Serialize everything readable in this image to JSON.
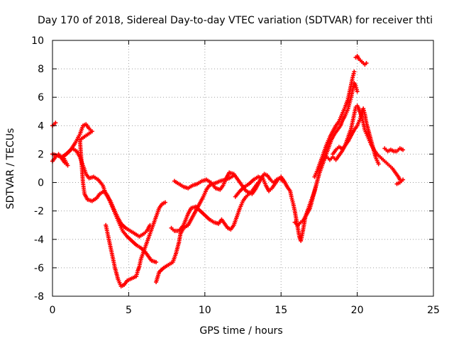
{
  "chart_data": {
    "type": "scatter",
    "title": "Day 170 of 2018, Sidereal Day-to-day VTEC variation (SDTVAR) for receiver thti",
    "xlabel": "GPS time / hours",
    "ylabel": "SDTVAR / TECUs",
    "xlim": [
      0,
      25
    ],
    "ylim": [
      -8,
      10
    ],
    "xticks": [
      "0",
      "5",
      "10",
      "15",
      "20",
      "25"
    ],
    "yticks": [
      "-8",
      "-6",
      "-4",
      "-2",
      "0",
      "2",
      "4",
      "6",
      "8",
      "10"
    ],
    "grid": true,
    "marker": "plus",
    "color": "#ff0000",
    "series": [
      {
        "points": [
          [
            0.0,
            4.0
          ],
          [
            0.2,
            4.2
          ],
          [
            0.0,
            1.5
          ],
          [
            0.2,
            1.8
          ],
          [
            0.4,
            2.0
          ],
          [
            0.6,
            1.7
          ],
          [
            0.8,
            1.4
          ],
          [
            1.0,
            1.2
          ],
          [
            0.7,
            1.8
          ],
          [
            1.0,
            2.1
          ],
          [
            1.3,
            2.4
          ],
          [
            1.6,
            2.2
          ],
          [
            1.8,
            1.8
          ],
          [
            2.0,
            1.2
          ],
          [
            2.2,
            0.6
          ],
          [
            2.4,
            0.3
          ],
          [
            2.7,
            0.4
          ],
          [
            3.0,
            0.2
          ],
          [
            3.3,
            -0.2
          ],
          [
            3.5,
            -0.8
          ],
          [
            3.8,
            -1.3
          ],
          [
            4.0,
            -1.8
          ],
          [
            4.3,
            -2.5
          ],
          [
            4.5,
            -2.9
          ],
          [
            4.8,
            -3.2
          ],
          [
            5.1,
            -3.4
          ],
          [
            5.4,
            -3.6
          ],
          [
            5.7,
            -3.8
          ],
          [
            6.0,
            -3.6
          ],
          [
            6.2,
            -3.4
          ],
          [
            6.4,
            -3.0
          ]
        ]
      },
      {
        "points": [
          [
            0.0,
            2.0
          ],
          [
            0.3,
            1.9
          ],
          [
            0.6,
            1.8
          ],
          [
            0.9,
            2.0
          ],
          [
            1.2,
            2.3
          ],
          [
            1.5,
            2.8
          ],
          [
            1.8,
            3.4
          ],
          [
            2.0,
            4.0
          ],
          [
            2.2,
            4.1
          ],
          [
            2.4,
            3.8
          ],
          [
            2.6,
            3.6
          ],
          [
            1.8,
            3.0
          ],
          [
            1.9,
            1.5
          ],
          [
            2.0,
            0.0
          ],
          [
            2.1,
            -0.8
          ],
          [
            2.3,
            -1.2
          ],
          [
            2.6,
            -1.3
          ],
          [
            2.9,
            -1.1
          ],
          [
            3.1,
            -0.8
          ],
          [
            3.4,
            -0.6
          ],
          [
            3.6,
            -0.9
          ],
          [
            3.8,
            -1.4
          ],
          [
            4.0,
            -1.9
          ],
          [
            4.2,
            -2.4
          ],
          [
            4.4,
            -2.9
          ],
          [
            4.6,
            -3.4
          ],
          [
            4.9,
            -3.8
          ],
          [
            5.2,
            -4.1
          ],
          [
            5.5,
            -4.4
          ],
          [
            5.8,
            -4.6
          ],
          [
            6.1,
            -4.9
          ],
          [
            6.3,
            -5.2
          ],
          [
            6.5,
            -5.5
          ],
          [
            6.8,
            -5.6
          ]
        ]
      },
      {
        "points": [
          [
            3.5,
            -3.0
          ],
          [
            3.7,
            -4.0
          ],
          [
            3.9,
            -5.0
          ],
          [
            4.1,
            -6.0
          ],
          [
            4.3,
            -6.8
          ],
          [
            4.5,
            -7.3
          ],
          [
            4.7,
            -7.2
          ],
          [
            4.9,
            -6.9
          ],
          [
            5.1,
            -6.8
          ],
          [
            5.3,
            -6.7
          ],
          [
            5.5,
            -6.6
          ],
          [
            5.6,
            -6.2
          ],
          [
            5.7,
            -5.9
          ],
          [
            5.8,
            -5.4
          ],
          [
            6.0,
            -4.8
          ],
          [
            6.2,
            -4.2
          ],
          [
            6.4,
            -3.6
          ],
          [
            6.6,
            -3.0
          ],
          [
            6.8,
            -2.4
          ],
          [
            7.0,
            -1.8
          ],
          [
            7.2,
            -1.5
          ],
          [
            7.4,
            -1.4
          ]
        ]
      },
      {
        "points": [
          [
            6.8,
            -7.0
          ],
          [
            7.0,
            -6.3
          ],
          [
            7.3,
            -6.0
          ],
          [
            7.6,
            -5.8
          ],
          [
            7.9,
            -5.6
          ],
          [
            8.1,
            -5.0
          ],
          [
            8.3,
            -4.2
          ],
          [
            8.4,
            -3.6
          ],
          [
            8.6,
            -3.2
          ],
          [
            8.9,
            -3.0
          ],
          [
            9.1,
            -2.6
          ],
          [
            9.3,
            -2.2
          ],
          [
            9.5,
            -1.8
          ],
          [
            9.7,
            -1.4
          ],
          [
            9.9,
            -1.0
          ],
          [
            10.1,
            -0.5
          ],
          [
            10.3,
            -0.2
          ],
          [
            10.5,
            -0.1
          ],
          [
            10.8,
            0.0
          ],
          [
            11.0,
            0.1
          ],
          [
            11.3,
            0.2
          ],
          [
            11.6,
            0.3
          ],
          [
            11.9,
            0.5
          ]
        ]
      },
      {
        "points": [
          [
            7.8,
            -3.2
          ],
          [
            8.0,
            -3.4
          ],
          [
            8.3,
            -3.4
          ],
          [
            8.6,
            -3.0
          ],
          [
            8.9,
            -2.2
          ],
          [
            9.1,
            -1.8
          ],
          [
            9.4,
            -1.7
          ],
          [
            9.7,
            -2.0
          ],
          [
            10.0,
            -2.3
          ],
          [
            10.3,
            -2.6
          ],
          [
            10.6,
            -2.8
          ],
          [
            10.9,
            -2.9
          ],
          [
            11.1,
            -2.6
          ],
          [
            11.3,
            -2.9
          ],
          [
            11.5,
            -3.2
          ],
          [
            11.7,
            -3.3
          ],
          [
            11.9,
            -3.0
          ],
          [
            12.1,
            -2.4
          ],
          [
            12.3,
            -1.8
          ],
          [
            12.5,
            -1.3
          ],
          [
            12.7,
            -1.0
          ],
          [
            12.9,
            -0.8
          ],
          [
            13.1,
            -0.6
          ],
          [
            13.3,
            -0.3
          ],
          [
            13.5,
            0.0
          ]
        ]
      },
      {
        "points": [
          [
            8.0,
            0.1
          ],
          [
            8.3,
            -0.1
          ],
          [
            8.6,
            -0.3
          ],
          [
            8.9,
            -0.4
          ],
          [
            9.2,
            -0.2
          ],
          [
            9.5,
            -0.1
          ],
          [
            9.8,
            0.1
          ],
          [
            10.1,
            0.2
          ],
          [
            10.4,
            0.0
          ],
          [
            10.7,
            -0.4
          ],
          [
            11.0,
            -0.5
          ],
          [
            11.2,
            -0.2
          ],
          [
            11.4,
            0.3
          ],
          [
            11.6,
            0.7
          ],
          [
            11.9,
            0.6
          ],
          [
            12.1,
            0.3
          ],
          [
            12.3,
            0.0
          ],
          [
            12.5,
            -0.3
          ],
          [
            12.7,
            -0.6
          ],
          [
            12.9,
            -0.7
          ],
          [
            13.1,
            -0.8
          ],
          [
            13.3,
            -0.5
          ],
          [
            13.5,
            -0.1
          ],
          [
            13.7,
            0.3
          ],
          [
            13.9,
            0.6
          ],
          [
            14.1,
            0.5
          ],
          [
            14.3,
            0.2
          ],
          [
            14.5,
            0.0
          ],
          [
            14.7,
            0.2
          ],
          [
            14.9,
            0.3
          ],
          [
            15.1,
            0.1
          ]
        ]
      },
      {
        "points": [
          [
            12.0,
            -1.0
          ],
          [
            12.3,
            -0.6
          ],
          [
            12.6,
            -0.3
          ],
          [
            12.9,
            -0.1
          ],
          [
            13.2,
            0.2
          ],
          [
            13.5,
            0.4
          ],
          [
            13.8,
            0.3
          ],
          [
            14.0,
            -0.2
          ],
          [
            14.2,
            -0.6
          ],
          [
            14.4,
            -0.4
          ],
          [
            14.6,
            -0.1
          ],
          [
            14.8,
            0.2
          ],
          [
            15.0,
            0.4
          ],
          [
            15.2,
            0.1
          ],
          [
            15.4,
            -0.3
          ],
          [
            15.6,
            -0.6
          ],
          [
            15.7,
            -1.1
          ],
          [
            15.8,
            -1.5
          ],
          [
            15.9,
            -2.0
          ],
          [
            16.0,
            -2.6
          ],
          [
            16.1,
            -3.2
          ],
          [
            16.2,
            -3.8
          ],
          [
            16.3,
            -4.1
          ],
          [
            16.4,
            -3.6
          ],
          [
            16.5,
            -3.0
          ],
          [
            16.6,
            -2.4
          ],
          [
            16.8,
            -1.8
          ],
          [
            17.0,
            -1.2
          ],
          [
            17.2,
            -0.6
          ],
          [
            17.3,
            -0.2
          ]
        ]
      },
      {
        "points": [
          [
            15.9,
            -2.8
          ],
          [
            16.1,
            -3.0
          ],
          [
            16.3,
            -2.8
          ],
          [
            16.5,
            -2.6
          ],
          [
            16.7,
            -2.2
          ],
          [
            16.9,
            -1.8
          ],
          [
            17.1,
            -1.0
          ],
          [
            17.3,
            -0.2
          ],
          [
            17.5,
            0.6
          ],
          [
            17.7,
            1.2
          ],
          [
            17.9,
            1.8
          ],
          [
            18.1,
            2.4
          ],
          [
            18.3,
            3.0
          ],
          [
            18.5,
            3.4
          ],
          [
            18.7,
            3.7
          ],
          [
            18.9,
            4.0
          ],
          [
            19.0,
            4.3
          ],
          [
            19.2,
            4.7
          ],
          [
            19.4,
            5.2
          ],
          [
            19.5,
            5.6
          ],
          [
            19.6,
            6.0
          ],
          [
            19.7,
            6.5
          ],
          [
            19.8,
            7.0
          ],
          [
            19.9,
            6.8
          ],
          [
            20.0,
            6.4
          ]
        ]
      },
      {
        "points": [
          [
            17.2,
            0.4
          ],
          [
            17.4,
            0.9
          ],
          [
            17.6,
            1.5
          ],
          [
            17.8,
            2.1
          ],
          [
            18.0,
            2.7
          ],
          [
            18.2,
            3.2
          ],
          [
            18.4,
            3.6
          ],
          [
            18.6,
            4.0
          ],
          [
            18.8,
            4.3
          ],
          [
            19.0,
            4.8
          ],
          [
            19.2,
            5.3
          ],
          [
            19.4,
            5.9
          ],
          [
            19.5,
            6.4
          ],
          [
            19.6,
            6.9
          ],
          [
            19.7,
            7.4
          ],
          [
            19.8,
            7.8
          ]
        ]
      },
      {
        "points": [
          [
            17.8,
            1.6
          ],
          [
            18.0,
            1.8
          ],
          [
            18.2,
            1.6
          ],
          [
            18.4,
            1.8
          ],
          [
            18.6,
            1.6
          ],
          [
            18.8,
            1.9
          ],
          [
            19.0,
            2.2
          ],
          [
            19.2,
            2.6
          ],
          [
            19.4,
            3.2
          ],
          [
            19.6,
            3.8
          ],
          [
            19.7,
            4.3
          ],
          [
            19.8,
            4.8
          ],
          [
            19.9,
            5.3
          ],
          [
            20.0,
            5.4
          ],
          [
            20.1,
            5.2
          ],
          [
            20.2,
            4.9
          ],
          [
            20.3,
            4.6
          ],
          [
            20.4,
            4.2
          ],
          [
            20.5,
            3.7
          ],
          [
            20.7,
            3.2
          ],
          [
            20.9,
            2.7
          ],
          [
            21.1,
            2.3
          ],
          [
            21.3,
            2.0
          ],
          [
            21.5,
            1.8
          ],
          [
            21.7,
            1.6
          ],
          [
            21.9,
            1.4
          ],
          [
            22.1,
            1.2
          ],
          [
            22.3,
            1.0
          ],
          [
            22.5,
            0.7
          ],
          [
            22.7,
            0.4
          ],
          [
            22.8,
            0.2
          ]
        ]
      },
      {
        "points": [
          [
            18.4,
            2.0
          ],
          [
            18.6,
            2.3
          ],
          [
            18.8,
            2.5
          ],
          [
            19.0,
            2.4
          ],
          [
            19.2,
            2.6
          ],
          [
            19.4,
            2.9
          ],
          [
            19.6,
            3.3
          ],
          [
            19.8,
            3.7
          ],
          [
            20.0,
            4.0
          ],
          [
            20.2,
            4.5
          ],
          [
            20.3,
            5.0
          ],
          [
            20.4,
            5.2
          ],
          [
            20.5,
            4.8
          ],
          [
            20.6,
            4.2
          ],
          [
            20.8,
            3.4
          ],
          [
            21.0,
            2.6
          ],
          [
            21.2,
            1.8
          ],
          [
            21.4,
            1.3
          ]
        ]
      },
      {
        "points": [
          [
            19.9,
            8.8
          ],
          [
            20.0,
            8.9
          ],
          [
            20.1,
            8.7
          ],
          [
            20.3,
            8.5
          ],
          [
            20.5,
            8.3
          ],
          [
            20.6,
            8.4
          ]
        ]
      },
      {
        "points": [
          [
            21.8,
            2.4
          ],
          [
            22.0,
            2.2
          ],
          [
            22.2,
            2.3
          ],
          [
            22.4,
            2.2
          ],
          [
            22.6,
            2.2
          ],
          [
            22.8,
            2.4
          ],
          [
            23.0,
            2.3
          ],
          [
            22.6,
            -0.1
          ],
          [
            22.8,
            0.0
          ],
          [
            23.0,
            0.2
          ]
        ]
      }
    ]
  }
}
